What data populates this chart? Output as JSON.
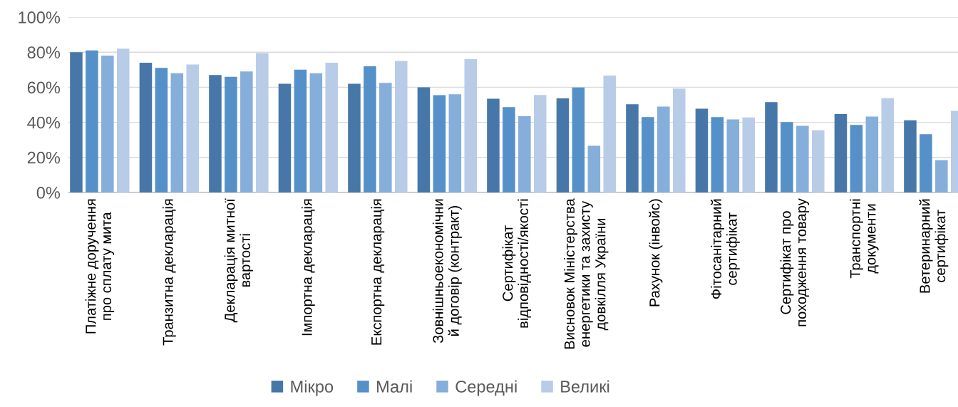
{
  "chart_data": {
    "type": "bar",
    "categories": [
      "Платіжне доручення\nпро сплату мита",
      "Транзитна декларація",
      "Декларація митної\nвартості",
      "Імпортна декларація",
      "Експортна декларація",
      "Зовнішньоекономічни\nй договір (контракт)",
      "Сертифікат\nвідповідності/якості",
      "Висновок Міністерства\nенергетики та захисту\nдовкілля України",
      "Рахунок (інвойс)",
      "Фітосанітарний\nсертифікат",
      "Сертифікат про\nпоходження товару",
      "Транспортні\nдокументи",
      "Ветеринарний\nсертифікат"
    ],
    "series": [
      {
        "name": "Мікро",
        "color": "#4677a8",
        "values": [
          80,
          74,
          67,
          62,
          62,
          60,
          53.5,
          53.7,
          50.3,
          47.8,
          51.5,
          44.7,
          41.2
        ]
      },
      {
        "name": "Малі",
        "color": "#5590c8",
        "values": [
          81,
          71,
          66,
          70,
          72,
          55.5,
          48.7,
          59.9,
          43,
          43,
          40.1,
          38.5,
          33.2
        ]
      },
      {
        "name": "Середні",
        "color": "#86aedb",
        "values": [
          78,
          68,
          69,
          68,
          62.5,
          56,
          43.5,
          26.6,
          49,
          41.7,
          38,
          43.3,
          18.4
        ]
      },
      {
        "name": "Великі",
        "color": "#b8cce8",
        "values": [
          82,
          73,
          79.5,
          74,
          75,
          76,
          55.6,
          66.7,
          59.2,
          42.8,
          35.5,
          53.8,
          46.5
        ]
      }
    ],
    "ylim": [
      0,
      100
    ],
    "yticks": [
      {
        "value": 0,
        "label": "0%"
      },
      {
        "value": 20,
        "label": "20%"
      },
      {
        "value": 40,
        "label": "40%"
      },
      {
        "value": 60,
        "label": "60%"
      },
      {
        "value": 80,
        "label": "80%"
      },
      {
        "value": 100,
        "label": "100%"
      }
    ],
    "grid": "y",
    "legend": "bottom"
  }
}
